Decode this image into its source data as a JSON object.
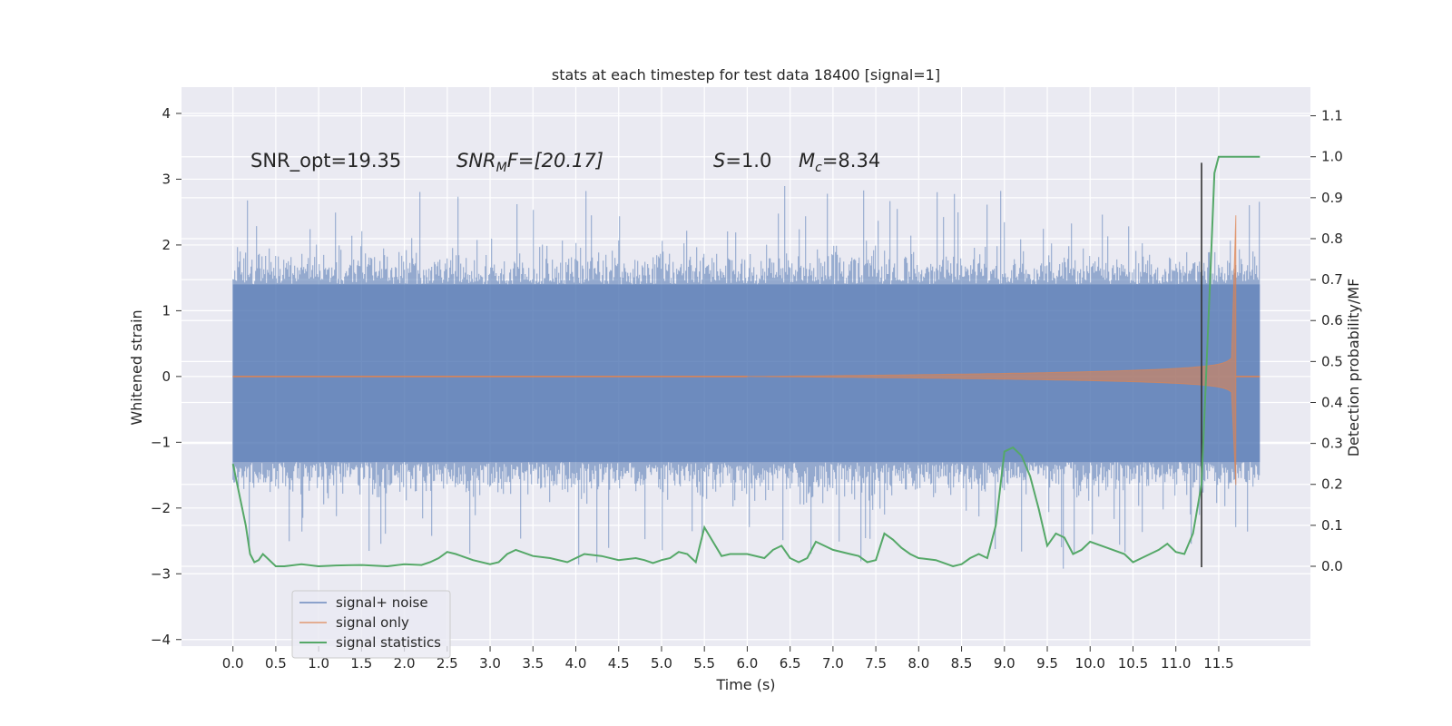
{
  "chart_data": {
    "type": "line",
    "title": "stats at each timestep for test data 18400 [signal=1]",
    "xlabel": "Time (s)",
    "ylabel": "Whitened strain",
    "ylabel_right": "Detection probability/MF",
    "xlim": [
      -0.6,
      12.57
    ],
    "ylim": [
      -4.1,
      4.4
    ],
    "ylim_right": [
      -0.195,
      1.17
    ],
    "x_ticks": [
      "0.0",
      "0.5",
      "1.0",
      "1.5",
      "2.0",
      "2.5",
      "3.0",
      "3.5",
      "4.0",
      "4.5",
      "5.0",
      "5.5",
      "6.0",
      "6.5",
      "7.0",
      "7.5",
      "8.0",
      "8.5",
      "9.0",
      "9.5",
      "10.0",
      "10.5",
      "11.0",
      "11.5"
    ],
    "y_ticks": [
      "−4",
      "−3",
      "−2",
      "−1",
      "0",
      "1",
      "2",
      "3",
      "4"
    ],
    "y_ticks_right": [
      "0.0",
      "0.1",
      "0.2",
      "0.3",
      "0.4",
      "0.5",
      "0.6",
      "0.7",
      "0.8",
      "0.9",
      "1.0",
      "1.1"
    ],
    "annotations": {
      "snr_opt": "SNR_opt=19.35",
      "snr_mf_var": "SNR",
      "snr_mf_sub": "M",
      "snr_mf_rest": "F=[20.17]",
      "s_var": "S",
      "s_rest": "=1.0",
      "mc_var": "M",
      "mc_sub": "c",
      "mc_rest": "=8.34"
    },
    "vline_x": 11.3,
    "series": [
      {
        "name": "signal+ noise",
        "color": "#4c72b0",
        "band": [
          -1.3,
          1.4
        ],
        "t_start": 0.0,
        "t_end": 11.98
      },
      {
        "name": "signal only",
        "color": "#dd8452",
        "chirp_end": 11.7,
        "peak": [
          2.45,
          -1.65
        ]
      },
      {
        "name": "signal statistics",
        "color": "#55a868",
        "x": [
          0.0,
          0.1,
          0.15,
          0.2,
          0.25,
          0.3,
          0.35,
          0.4,
          0.5,
          0.6,
          0.8,
          1.0,
          1.2,
          1.5,
          1.8,
          2.0,
          2.2,
          2.3,
          2.4,
          2.5,
          2.6,
          2.8,
          3.0,
          3.1,
          3.2,
          3.3,
          3.5,
          3.7,
          3.9,
          4.0,
          4.1,
          4.3,
          4.5,
          4.7,
          4.8,
          4.9,
          5.0,
          5.1,
          5.2,
          5.3,
          5.4,
          5.5,
          5.6,
          5.7,
          5.8,
          6.0,
          6.2,
          6.3,
          6.4,
          6.5,
          6.6,
          6.7,
          6.8,
          7.0,
          7.2,
          7.3,
          7.4,
          7.5,
          7.6,
          7.7,
          7.8,
          7.9,
          8.0,
          8.2,
          8.4,
          8.5,
          8.6,
          8.7,
          8.8,
          8.9,
          9.0,
          9.1,
          9.2,
          9.3,
          9.4,
          9.5,
          9.6,
          9.7,
          9.8,
          9.9,
          10.0,
          10.2,
          10.4,
          10.5,
          10.6,
          10.8,
          10.9,
          11.0,
          11.1,
          11.2,
          11.3,
          11.4,
          11.45,
          11.5,
          11.6,
          11.7,
          11.8,
          11.9,
          11.98
        ],
        "values": [
          0.25,
          0.15,
          0.1,
          0.03,
          0.01,
          0.015,
          0.03,
          0.02,
          0.0,
          0.0,
          0.005,
          0.0,
          0.002,
          0.003,
          0.0,
          0.005,
          0.003,
          0.01,
          0.02,
          0.035,
          0.03,
          0.015,
          0.005,
          0.01,
          0.03,
          0.04,
          0.025,
          0.02,
          0.01,
          0.02,
          0.03,
          0.025,
          0.015,
          0.02,
          0.015,
          0.008,
          0.015,
          0.02,
          0.035,
          0.03,
          0.01,
          0.095,
          0.06,
          0.025,
          0.03,
          0.03,
          0.02,
          0.04,
          0.05,
          0.02,
          0.01,
          0.02,
          0.06,
          0.04,
          0.03,
          0.025,
          0.01,
          0.015,
          0.08,
          0.065,
          0.045,
          0.03,
          0.02,
          0.015,
          0.0,
          0.005,
          0.02,
          0.03,
          0.02,
          0.1,
          0.28,
          0.29,
          0.27,
          0.22,
          0.14,
          0.05,
          0.08,
          0.07,
          0.03,
          0.04,
          0.06,
          0.045,
          0.03,
          0.01,
          0.02,
          0.04,
          0.055,
          0.035,
          0.03,
          0.08,
          0.2,
          0.7,
          0.96,
          1.0,
          1.0,
          1.0,
          1.0,
          1.0,
          1.0
        ]
      }
    ],
    "legend_location": "lower-left"
  }
}
